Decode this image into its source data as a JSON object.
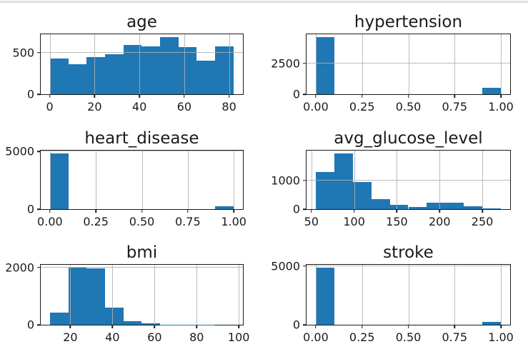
{
  "figure": {
    "bar_color": "#1f77b4",
    "grid_color": "#b0b0b0",
    "spine_color": "#1a1a1a",
    "text_color": "#1a1a1a",
    "top_rule_color": "#e0e0e0",
    "background": "#ffffff"
  },
  "chart_data": [
    {
      "type": "bar",
      "title": "age",
      "bin_start": 0.08,
      "bin_width": 8.192,
      "values": [
        425,
        360,
        445,
        480,
        590,
        570,
        685,
        565,
        400,
        570
      ],
      "xlim": [
        -4.02,
        86.19
      ],
      "ylim": [
        0,
        719
      ],
      "x_ticks": [
        {
          "v": 0,
          "label": "0"
        },
        {
          "v": 20,
          "label": "20"
        },
        {
          "v": 40,
          "label": "40"
        },
        {
          "v": 60,
          "label": "60"
        },
        {
          "v": 80,
          "label": "80"
        }
      ],
      "y_ticks": [
        {
          "v": 0,
          "label": "0"
        },
        {
          "v": 500,
          "label": "500"
        }
      ],
      "grid": true
    },
    {
      "type": "bar",
      "title": "hypertension",
      "bin_start": 0,
      "bin_width": 0.1,
      "values": [
        4612,
        0,
        0,
        0,
        0,
        0,
        0,
        0,
        0,
        498
      ],
      "xlim": [
        -0.05,
        1.05
      ],
      "ylim": [
        0,
        4843
      ],
      "x_ticks": [
        {
          "v": 0,
          "label": "0.00"
        },
        {
          "v": 0.25,
          "label": "0.25"
        },
        {
          "v": 0.5,
          "label": "0.50"
        },
        {
          "v": 0.75,
          "label": "0.75"
        },
        {
          "v": 1,
          "label": "1.00"
        }
      ],
      "y_ticks": [
        {
          "v": 0,
          "label": "0"
        },
        {
          "v": 2500,
          "label": "2500"
        }
      ],
      "grid": true
    },
    {
      "type": "bar",
      "title": "heart_disease",
      "bin_start": 0,
      "bin_width": 0.1,
      "values": [
        4834,
        0,
        0,
        0,
        0,
        0,
        0,
        0,
        0,
        276
      ],
      "xlim": [
        -0.05,
        1.05
      ],
      "ylim": [
        0,
        5076
      ],
      "x_ticks": [
        {
          "v": 0,
          "label": "0.00"
        },
        {
          "v": 0.25,
          "label": "0.25"
        },
        {
          "v": 0.5,
          "label": "0.50"
        },
        {
          "v": 0.75,
          "label": "0.75"
        },
        {
          "v": 1,
          "label": "1.00"
        }
      ],
      "y_ticks": [
        {
          "v": 0,
          "label": "0"
        },
        {
          "v": 5000,
          "label": "5000"
        }
      ],
      "grid": true
    },
    {
      "type": "bar",
      "title": "avg_glucose_level",
      "bin_start": 55.12,
      "bin_width": 21.662,
      "values": [
        1300,
        1950,
        960,
        340,
        160,
        85,
        215,
        220,
        95,
        30
      ],
      "xlim": [
        44.29,
        282.57
      ],
      "ylim": [
        0,
        2048
      ],
      "x_ticks": [
        {
          "v": 50,
          "label": "50"
        },
        {
          "v": 100,
          "label": "100"
        },
        {
          "v": 150,
          "label": "150"
        },
        {
          "v": 200,
          "label": "200"
        },
        {
          "v": 250,
          "label": "250"
        }
      ],
      "y_ticks": [
        {
          "v": 0,
          "label": "0"
        },
        {
          "v": 1000,
          "label": "1000"
        }
      ],
      "grid": true
    },
    {
      "type": "bar",
      "title": "bmi",
      "bin_start": 10.3,
      "bin_width": 8.73,
      "values": [
        420,
        1990,
        1965,
        590,
        125,
        40,
        10,
        5,
        2,
        1
      ],
      "xlim": [
        5.94,
        101.97
      ],
      "ylim": [
        0,
        2090
      ],
      "x_ticks": [
        {
          "v": 20,
          "label": "20"
        },
        {
          "v": 40,
          "label": "40"
        },
        {
          "v": 60,
          "label": "60"
        },
        {
          "v": 80,
          "label": "80"
        },
        {
          "v": 100,
          "label": "100"
        }
      ],
      "y_ticks": [
        {
          "v": 0,
          "label": "0"
        },
        {
          "v": 2000,
          "label": "2000"
        }
      ],
      "grid": true
    },
    {
      "type": "bar",
      "title": "stroke",
      "bin_start": 0,
      "bin_width": 0.1,
      "values": [
        4861,
        0,
        0,
        0,
        0,
        0,
        0,
        0,
        0,
        249
      ],
      "xlim": [
        -0.05,
        1.05
      ],
      "ylim": [
        0,
        5104
      ],
      "x_ticks": [
        {
          "v": 0,
          "label": "0.00"
        },
        {
          "v": 0.25,
          "label": "0.25"
        },
        {
          "v": 0.5,
          "label": "0.50"
        },
        {
          "v": 0.75,
          "label": "0.75"
        },
        {
          "v": 1,
          "label": "1.00"
        }
      ],
      "y_ticks": [
        {
          "v": 0,
          "label": "0"
        },
        {
          "v": 5000,
          "label": "5000"
        }
      ],
      "grid": true
    }
  ]
}
